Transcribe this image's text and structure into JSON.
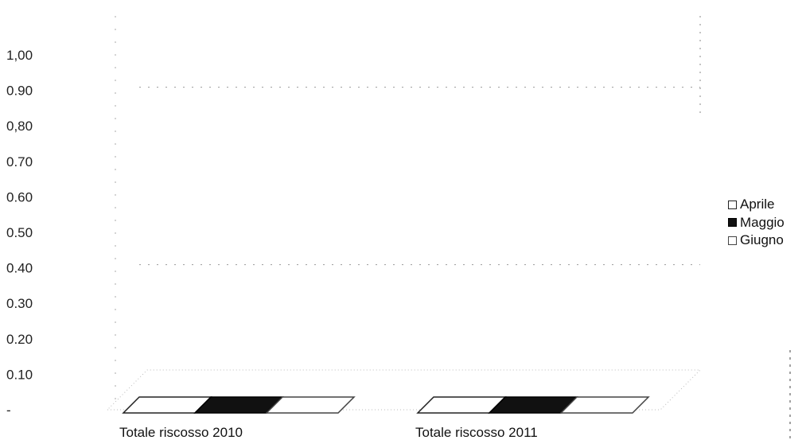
{
  "chart_data": {
    "type": "bar",
    "categories": [
      "Totale riscosso 2010",
      "Totale riscosso 2011"
    ],
    "series": [
      {
        "name": "Aprile",
        "values": [
          0,
          0
        ],
        "color": "#ffffff",
        "border": "#222222"
      },
      {
        "name": "Maggio",
        "values": [
          0,
          0
        ],
        "color": "#111111",
        "border": "#000000"
      },
      {
        "name": "Giugno",
        "values": [
          0,
          0
        ],
        "color": "#ffffff",
        "border": "#444444"
      }
    ],
    "y_ticks": [
      "1,00",
      "0.90",
      "0,80",
      "0.70",
      "0.60",
      "0.50",
      "0.40",
      "0.30",
      "0.20",
      "0.10",
      "-"
    ],
    "ylim": [
      0,
      1.0
    ],
    "legend_position": "right",
    "grid": true,
    "three_d": true
  }
}
